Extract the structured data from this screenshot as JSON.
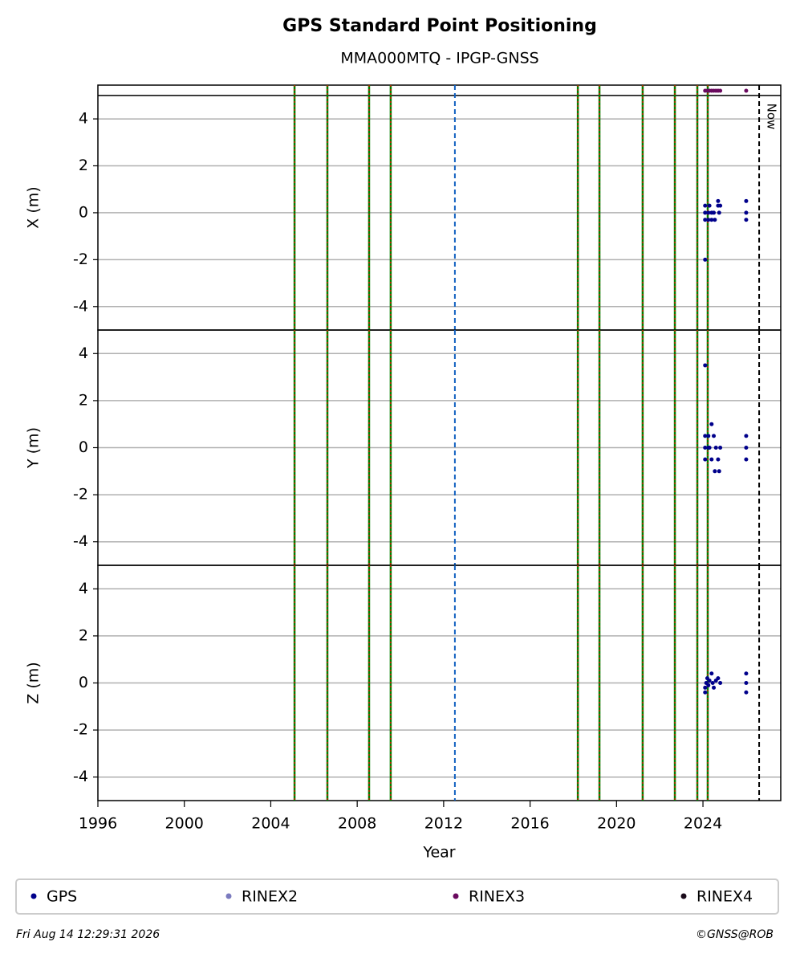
{
  "title": "GPS Standard Point Positioning",
  "subtitle": "MMA000MTQ - IPGP-GNSS",
  "events": [
    2005.1,
    2006.62,
    2008.55,
    2009.55,
    2018.21,
    2019.21,
    2021.21,
    2022.7,
    2023.74,
    2024.22
  ],
  "dashed_event": 2012.52,
  "now": {
    "value": 2026.6,
    "label": "Now"
  },
  "legend": [
    {
      "name": "GPS",
      "color": "#00008b"
    },
    {
      "name": "RINEX2",
      "color": "#7b7bbf"
    },
    {
      "name": "RINEX3",
      "color": "#6a0a5e"
    },
    {
      "name": "RINEX4",
      "color": "#1a0a1a"
    }
  ],
  "footer": {
    "date": "Fri Aug 14 12:29:31 2026",
    "credit": "©GNSS@ROB"
  },
  "chart_data": [
    {
      "type": "scatter",
      "ylabel": "X (m)",
      "xlim": [
        1996,
        2027.6
      ],
      "ylim": [
        -5,
        5.44
      ],
      "yticks": [
        -4,
        -2,
        0,
        2,
        4
      ],
      "hlines": [
        5
      ],
      "grid": true,
      "series": [
        {
          "name": "GPS",
          "color": "#00008b",
          "x": [
            2024.1,
            2024.1,
            2024.1,
            2024.1,
            2024.25,
            2024.25,
            2024.3,
            2024.4,
            2024.4,
            2024.5,
            2024.55,
            2024.7,
            2024.7,
            2024.75,
            2024.8,
            2026.0,
            2026.0,
            2026.0
          ],
          "values": [
            0.3,
            0,
            -0.3,
            -2,
            0,
            -0.3,
            0.3,
            0,
            -0.3,
            0,
            -0.3,
            0.5,
            0.3,
            0,
            0.3,
            0.5,
            0,
            -0.3
          ]
        },
        {
          "name": "RINEX3",
          "color": "#6a0a5e",
          "x": [
            2024.1,
            2024.2,
            2024.3,
            2024.4,
            2024.5,
            2024.6,
            2024.7,
            2024.8,
            2026.0
          ],
          "values": [
            5.2,
            5.2,
            5.2,
            5.2,
            5.2,
            5.2,
            5.2,
            5.2,
            5.2
          ]
        }
      ]
    },
    {
      "type": "scatter",
      "ylabel": "Y (m)",
      "xlim": [
        1996,
        2027.6
      ],
      "ylim": [
        -5,
        5
      ],
      "yticks": [
        -4,
        -2,
        0,
        2,
        4
      ],
      "grid": true,
      "series": [
        {
          "name": "GPS",
          "color": "#00008b",
          "x": [
            2024.1,
            2024.1,
            2024.1,
            2024.1,
            2024.25,
            2024.25,
            2024.3,
            2024.4,
            2024.4,
            2024.5,
            2024.55,
            2024.6,
            2024.7,
            2024.75,
            2024.8,
            2026.0,
            2026.0,
            2026.0
          ],
          "values": [
            3.5,
            0.5,
            0,
            -0.5,
            0.5,
            0,
            0,
            1,
            -0.5,
            0.5,
            -1,
            0,
            -0.5,
            -1,
            0,
            0.5,
            0,
            -0.5
          ]
        }
      ]
    },
    {
      "type": "scatter",
      "ylabel": "Z (m)",
      "xlabel": "Year",
      "xlim": [
        1996,
        2027.6
      ],
      "ylim": [
        -5,
        5
      ],
      "yticks": [
        -4,
        -2,
        0,
        2,
        4
      ],
      "xticks": [
        1996,
        2000,
        2004,
        2008,
        2012,
        2016,
        2020,
        2024
      ],
      "grid": true,
      "series": [
        {
          "name": "GPS",
          "color": "#00008b",
          "x": [
            2024.1,
            2024.1,
            2024.15,
            2024.2,
            2024.25,
            2024.3,
            2024.4,
            2024.45,
            2024.5,
            2024.6,
            2024.7,
            2024.8,
            2026.0,
            2026.0,
            2026.0
          ],
          "values": [
            -0.4,
            -0.2,
            0,
            0.2,
            -0.1,
            0.1,
            0.4,
            0,
            -0.2,
            0.1,
            0.2,
            0,
            0.4,
            0,
            -0.4
          ]
        }
      ]
    }
  ]
}
